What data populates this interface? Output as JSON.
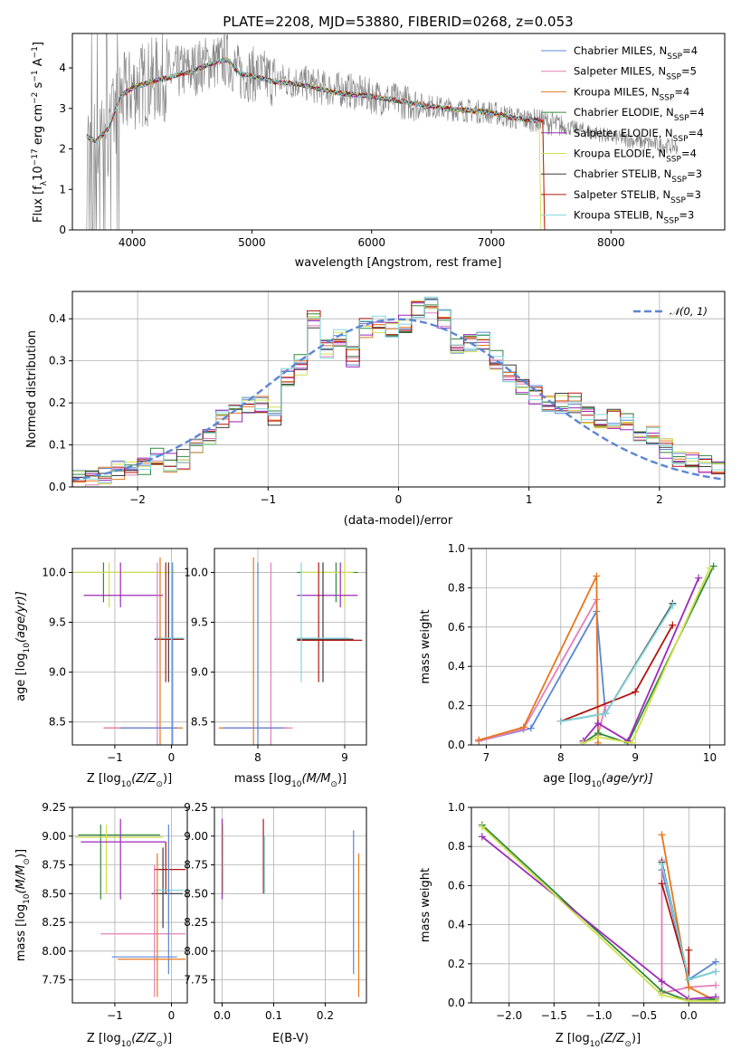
{
  "figure": {
    "title": "PLATE=2208, MJD=53880, FIBERID=0268, z=0.053"
  },
  "chart_data": [
    {
      "id": "spectrum",
      "type": "line",
      "xlabel": "wavelength [Angstrom, rest frame]",
      "ylabel_parts": [
        "Flux [f",
        "λ",
        "10",
        "−17",
        " erg cm",
        "−2",
        " s",
        "−1",
        " A",
        "−1",
        "]"
      ],
      "xlim": [
        3500,
        8950
      ],
      "ylim": [
        0,
        4.85
      ],
      "xticks": [
        "4000",
        "5000",
        "6000",
        "7000",
        "8000"
      ],
      "yticks": [
        "0",
        "1",
        "2",
        "3",
        "4"
      ],
      "legend_position": "upper-right",
      "series_names": [
        "Chabrier MILES, N_SSP=4",
        "Salpeter MILES, N_SSP=5",
        "Kroupa MILES, N_SSP=4",
        "Chabrier ELODIE, N_SSP=4",
        "Salpeter ELODIE, N_SSP=4",
        "Kroupa ELODIE, N_SSP=4",
        "Chabrier STELIB, N_SSP=3",
        "Salpeter STELIB, N_SSP=3",
        "Kroupa STELIB, N_SSP=3"
      ],
      "data_spectrum": {
        "x": [
          3620,
          3700,
          3800,
          3900,
          4000,
          4100,
          4200,
          4300,
          4400,
          4500,
          4600,
          4700,
          4800,
          4900,
          5000,
          5200,
          5400,
          5600,
          5800,
          6000,
          6200,
          6400,
          6600,
          6800,
          7000,
          7200,
          7400,
          7600,
          7800,
          8000,
          8200,
          8400,
          8560
        ],
        "y": [
          2.3,
          2.1,
          2.4,
          3.2,
          3.5,
          3.6,
          3.7,
          3.8,
          3.9,
          3.95,
          4.1,
          4.15,
          4.2,
          3.85,
          3.85,
          3.7,
          3.65,
          3.5,
          3.45,
          3.3,
          3.2,
          3.1,
          3.0,
          2.95,
          2.9,
          2.75,
          2.7,
          2.55,
          2.45,
          2.3,
          2.2,
          2.1,
          2.05
        ]
      },
      "model_curve": {
        "x": [
          3620,
          3700,
          3800,
          3900,
          4000,
          4100,
          4200,
          4300,
          4400,
          4500,
          4600,
          4700,
          4800,
          4900,
          5000,
          5200,
          5400,
          5600,
          5800,
          6000,
          6200,
          6400,
          6600,
          6800,
          7000,
          7200,
          7400
        ],
        "y": [
          2.3,
          2.2,
          2.5,
          3.3,
          3.5,
          3.6,
          3.7,
          3.75,
          3.85,
          3.9,
          4.05,
          4.15,
          4.2,
          3.85,
          3.8,
          3.65,
          3.6,
          3.45,
          3.35,
          3.3,
          3.2,
          3.1,
          3.0,
          2.95,
          2.9,
          2.75,
          2.7
        ]
      }
    },
    {
      "id": "residuals",
      "type": "step",
      "xlabel": "(data-model)/error",
      "ylabel": "Normed distribution",
      "xlim": [
        -2.5,
        2.5
      ],
      "ylim": [
        0,
        0.465
      ],
      "xticks": [
        "−2",
        "−1",
        "0",
        "1",
        "2"
      ],
      "yticks": [
        "0.0",
        "0.1",
        "0.2",
        "0.3",
        "0.4"
      ],
      "legend": "𝒩(0, 1)",
      "legend_position": "upper-right",
      "bins": [
        -2.5,
        -2.4,
        -2.3,
        -2.2,
        -2.1,
        -2.0,
        -1.9,
        -1.8,
        -1.7,
        -1.6,
        -1.5,
        -1.4,
        -1.3,
        -1.2,
        -1.1,
        -1.0,
        -0.9,
        -0.8,
        -0.7,
        -0.6,
        -0.5,
        -0.4,
        -0.3,
        -0.2,
        -0.1,
        0.0,
        0.1,
        0.2,
        0.3,
        0.4,
        0.5,
        0.6,
        0.7,
        0.8,
        0.9,
        1.0,
        1.1,
        1.2,
        1.3,
        1.4,
        1.5,
        1.6,
        1.7,
        1.8,
        1.9,
        2.0,
        2.1,
        2.2,
        2.3,
        2.4,
        2.5
      ],
      "hist_values": [
        0.02,
        0.025,
        0.03,
        0.04,
        0.045,
        0.05,
        0.07,
        0.06,
        0.065,
        0.1,
        0.12,
        0.16,
        0.18,
        0.2,
        0.2,
        0.17,
        0.26,
        0.29,
        0.4,
        0.33,
        0.35,
        0.31,
        0.38,
        0.39,
        0.38,
        0.39,
        0.42,
        0.43,
        0.4,
        0.33,
        0.34,
        0.35,
        0.3,
        0.27,
        0.24,
        0.22,
        0.2,
        0.2,
        0.2,
        0.17,
        0.15,
        0.16,
        0.15,
        0.13,
        0.12,
        0.09,
        0.07,
        0.06,
        0.05,
        0.04
      ]
    },
    {
      "id": "age_vs_Z",
      "type": "errorbar",
      "xlabel_parts": [
        "Z [log",
        "10",
        "(Z/Z",
        "⊙",
        ")]"
      ],
      "ylabel_parts": [
        "age  [log",
        "10",
        "(age/yr)]"
      ],
      "xlim": [
        -1.75,
        0.28
      ],
      "ylim": [
        8.27,
        10.24
      ],
      "xticks": [
        "−1",
        "0"
      ],
      "yticks": [
        "8.5",
        "9.0",
        "9.5",
        "10.0"
      ]
    },
    {
      "id": "age_vs_mass",
      "type": "errorbar",
      "xlabel_parts": [
        "mass [log",
        "10",
        "(M/M",
        "⊙",
        ")]"
      ],
      "xlim": [
        7.5,
        9.25
      ],
      "ylim": [
        8.27,
        10.24
      ],
      "xticks": [
        "8",
        "9"
      ],
      "yticks": [
        "8.5",
        "9.0",
        "9.5",
        "10.0"
      ]
    },
    {
      "id": "massweight_vs_age",
      "type": "line",
      "xlabel_parts": [
        "age  [log",
        "10",
        "(age/yr)]"
      ],
      "ylabel": "mass weight",
      "xlim": [
        6.8,
        10.2
      ],
      "ylim": [
        0,
        1
      ],
      "xticks": [
        "7",
        "8",
        "9",
        "10"
      ],
      "yticks": [
        "0.0",
        "0.2",
        "0.4",
        "0.6",
        "0.8",
        "1.0"
      ],
      "series": [
        {
          "name": "Chabrier MILES",
          "x": [
            6.9,
            7.6,
            8.48,
            8.6
          ],
          "y": [
            0.02,
            0.085,
            0.68,
            0.16
          ]
        },
        {
          "name": "Salpeter MILES",
          "x": [
            6.9,
            7.5,
            8.48,
            8.5,
            8.6
          ],
          "y": [
            0.02,
            0.08,
            0.74,
            0.05,
            0.2
          ]
        },
        {
          "name": "Kroupa MILES",
          "x": [
            6.9,
            7.5,
            8.48,
            8.5
          ],
          "y": [
            0.025,
            0.09,
            0.86,
            0.01
          ]
        },
        {
          "name": "Chabrier ELODIE",
          "x": [
            8.3,
            8.5,
            8.9,
            10.05
          ],
          "y": [
            0.01,
            0.06,
            0.01,
            0.91
          ]
        },
        {
          "name": "Salpeter ELODIE",
          "x": [
            8.3,
            8.5,
            8.9,
            9.85
          ],
          "y": [
            0.02,
            0.11,
            0.02,
            0.85
          ]
        },
        {
          "name": "Kroupa ELODIE",
          "x": [
            8.3,
            8.5,
            8.95,
            10.0
          ],
          "y": [
            0.01,
            0.04,
            0.01,
            0.9
          ]
        },
        {
          "name": "Chabrier STELIB",
          "x": [
            8.0,
            8.6,
            9.5
          ],
          "y": [
            0.12,
            0.16,
            0.72
          ]
        },
        {
          "name": "Salpeter STELIB",
          "x": [
            8.0,
            9.0,
            9.5
          ],
          "y": [
            0.12,
            0.27,
            0.61
          ]
        },
        {
          "name": "Kroupa STELIB",
          "x": [
            8.0,
            8.6,
            9.5
          ],
          "y": [
            0.12,
            0.16,
            0.71
          ]
        }
      ]
    },
    {
      "id": "mass_vs_Z",
      "type": "errorbar",
      "xlabel_parts": [
        "Z [log",
        "10",
        "(Z/Z",
        "⊙",
        ")]"
      ],
      "ylabel_parts": [
        "mass [log",
        "10",
        "(M/M",
        "⊙",
        ")]"
      ],
      "xlim": [
        -1.75,
        0.28
      ],
      "ylim": [
        7.55,
        9.25
      ],
      "xticks": [
        "−1",
        "0"
      ],
      "yticks": [
        "7.75",
        "8.00",
        "8.25",
        "8.50",
        "8.75",
        "9.00",
        "9.25"
      ]
    },
    {
      "id": "mass_vs_EBV",
      "type": "errorbar",
      "xlabel": "E(B-V)",
      "xlim": [
        -0.015,
        0.28
      ],
      "ylim": [
        7.55,
        9.25
      ],
      "xticks": [
        "0.0",
        "0.1",
        "0.2"
      ],
      "yticks": [
        "7.75",
        "8.00",
        "8.25",
        "8.50",
        "8.75",
        "9.00",
        "9.25"
      ]
    },
    {
      "id": "massweight_vs_Z",
      "type": "line",
      "xlabel_parts": [
        "Z [log",
        "10",
        "(Z/Z",
        "⊙",
        ")]"
      ],
      "ylabel": "mass weight",
      "xlim": [
        -2.42,
        0.4
      ],
      "ylim": [
        0,
        1
      ],
      "xticks": [
        "−2.0",
        "−1.5",
        "−1.0",
        "−0.5",
        "0.0"
      ],
      "yticks": [
        "0.0",
        "0.2",
        "0.4",
        "0.6",
        "0.8",
        "1.0"
      ],
      "series": [
        {
          "name": "Chabrier MILES",
          "x": [
            -0.3,
            0.0,
            0.3
          ],
          "y": [
            0.68,
            0.12,
            0.21
          ]
        },
        {
          "name": "Salpeter MILES",
          "x": [
            -0.3,
            -0.3,
            0.0,
            0.3
          ],
          "y": [
            0.73,
            0.05,
            0.08,
            0.09
          ]
        },
        {
          "name": "Kroupa MILES",
          "x": [
            -0.3,
            0.0,
            0.3
          ],
          "y": [
            0.86,
            0.08,
            0.01
          ]
        },
        {
          "name": "Chabrier ELODIE",
          "x": [
            -2.3,
            -0.3,
            0.0,
            0.3
          ],
          "y": [
            0.91,
            0.06,
            0.01,
            0.02
          ]
        },
        {
          "name": "Salpeter ELODIE",
          "x": [
            -2.3,
            -0.3,
            0.0,
            0.3
          ],
          "y": [
            0.85,
            0.11,
            0.02,
            0.03
          ]
        },
        {
          "name": "Kroupa ELODIE",
          "x": [
            -2.3,
            -0.3,
            0.0,
            0.3
          ],
          "y": [
            0.9,
            0.04,
            0.01,
            0.01
          ]
        },
        {
          "name": "Chabrier STELIB",
          "x": [
            -0.3,
            0.0,
            0.3
          ],
          "y": [
            0.72,
            0.12,
            0.16
          ]
        },
        {
          "name": "Salpeter STELIB",
          "x": [
            -0.3,
            0.0,
            0.0
          ],
          "y": [
            0.61,
            0.12,
            0.27
          ]
        },
        {
          "name": "Kroupa STELIB",
          "x": [
            -0.3,
            0.0,
            0.3
          ],
          "y": [
            0.71,
            0.12,
            0.16
          ]
        }
      ]
    }
  ],
  "colors": {
    "Chabrier MILES": "#5b86d4",
    "Salpeter MILES": "#e47fb9",
    "Kroupa MILES": "#e8761a",
    "Chabrier ELODIE": "#2f8a3a",
    "Salpeter ELODIE": "#9b29b8",
    "Kroupa ELODIE": "#cfe04a",
    "Chabrier STELIB": "#3b3b3b",
    "Salpeter STELIB": "#b3140f",
    "Kroupa STELIB": "#7fd6dc",
    "data": "#7f7f7f",
    "normal": "#5b86d4"
  }
}
